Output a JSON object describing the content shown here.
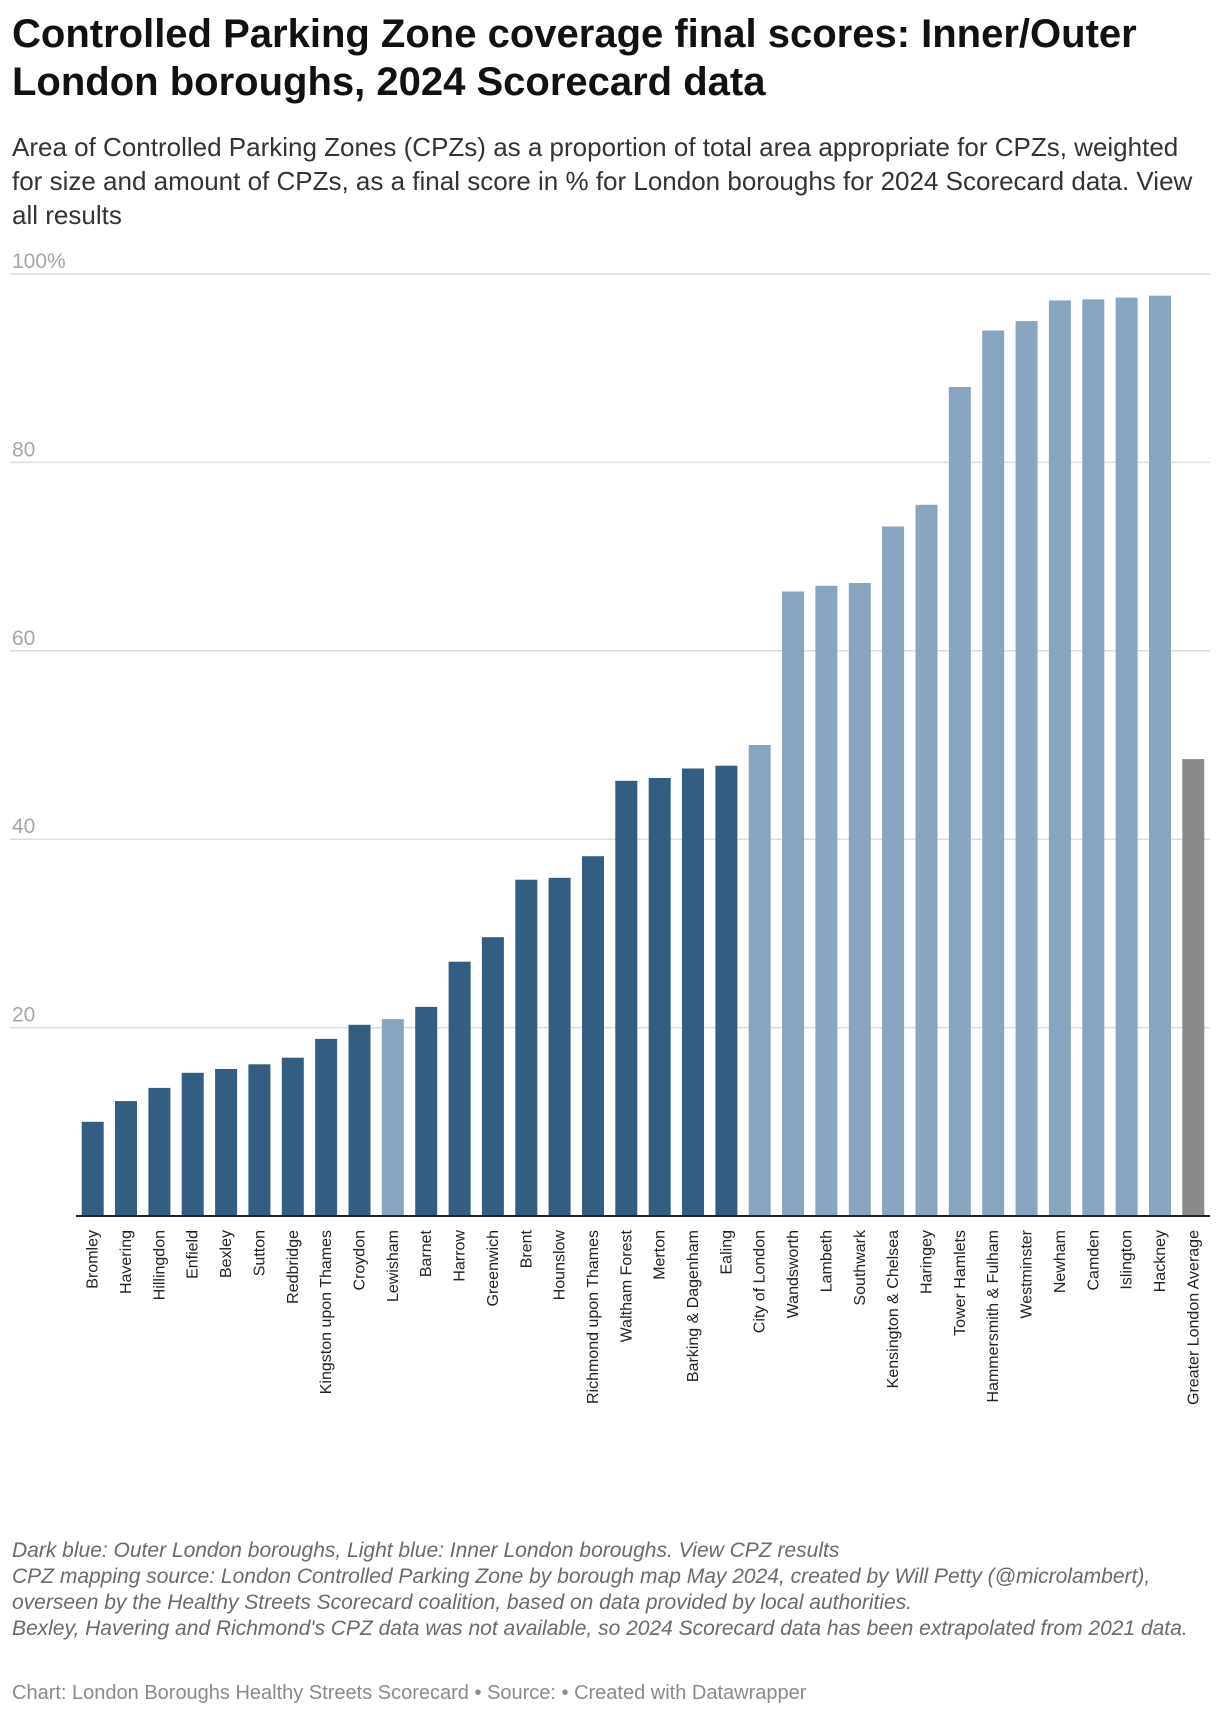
{
  "header": {
    "title": "Controlled Parking Zone coverage final scores: Inner/Outer London boroughs, 2024 Scorecard data",
    "subtitle": "Area of Controlled Parking Zones (CPZs) as a proportion of total area appropriate for CPZs, weighted for size and amount of CPZs, as a final score in % for London boroughs for 2024 Scorecard data.",
    "subtitle_link": "View all results"
  },
  "colors": {
    "outer": "#345d82",
    "inner": "#88a5c0",
    "average": "#8a8a8a",
    "grid": "#dddddd",
    "axis": "#222222"
  },
  "chart_data": {
    "type": "bar",
    "title": "Controlled Parking Zone coverage final scores: Inner/Outer London boroughs, 2024 Scorecard data",
    "xlabel": "",
    "ylabel": "",
    "ylim": [
      0,
      100
    ],
    "yticks": [
      20,
      40,
      60,
      80,
      100
    ],
    "ytick_labels": [
      "20",
      "40",
      "60",
      "80",
      "100%"
    ],
    "grid": true,
    "categories": [
      "Bromley",
      "Havering",
      "Hillingdon",
      "Enfield",
      "Bexley",
      "Sutton",
      "Redbridge",
      "Kingston upon Thames",
      "Croydon",
      "Lewisham",
      "Barnet",
      "Harrow",
      "Greenwich",
      "Brent",
      "Hounslow",
      "Richmond upon Thames",
      "Waltham Forest",
      "Merton",
      "Barking & Dagenham",
      "Ealing",
      "City of London",
      "Wandsworth",
      "Lambeth",
      "Southwark",
      "Kensington & Chelsea",
      "Haringey",
      "Tower Hamlets",
      "Hammersmith & Fulham",
      "Westminster",
      "Newham",
      "Camden",
      "Islington",
      "Hackney",
      "Greater London Average"
    ],
    "values": [
      10.0,
      12.2,
      13.6,
      15.2,
      15.6,
      16.1,
      16.8,
      18.8,
      20.3,
      20.9,
      22.2,
      27.0,
      29.6,
      35.7,
      35.9,
      38.2,
      46.2,
      46.5,
      47.5,
      47.8,
      50.0,
      66.3,
      66.9,
      67.2,
      73.2,
      75.5,
      88.0,
      94.0,
      95.0,
      97.2,
      97.3,
      97.5,
      97.7,
      48.5
    ],
    "groups": [
      "outer",
      "outer",
      "outer",
      "outer",
      "outer",
      "outer",
      "outer",
      "outer",
      "outer",
      "inner",
      "outer",
      "outer",
      "outer",
      "outer",
      "outer",
      "outer",
      "outer",
      "outer",
      "outer",
      "outer",
      "inner",
      "inner",
      "inner",
      "inner",
      "inner",
      "inner",
      "inner",
      "inner",
      "inner",
      "inner",
      "inner",
      "inner",
      "inner",
      "average"
    ],
    "legend": "Dark blue: Outer London boroughs, Light blue: Inner London boroughs"
  },
  "notes": {
    "legend_note": "Dark blue: Outer London boroughs, Light blue: Inner London boroughs.",
    "legend_link": "View CPZ results",
    "source_note": "CPZ mapping source: London Controlled Parking Zone by borough map May 2024, created by Will Petty (@microlambert), overseen by the Healthy Streets Scorecard coalition, based on data provided by local authorities.",
    "extrapolation_note": "Bexley, Havering and Richmond's CPZ data was not available, so 2024 Scorecard data has been extrapolated from 2021 data."
  },
  "footer": {
    "credit": "Chart: London Boroughs Healthy Streets Scorecard • Source:  • Created with Datawrapper"
  }
}
